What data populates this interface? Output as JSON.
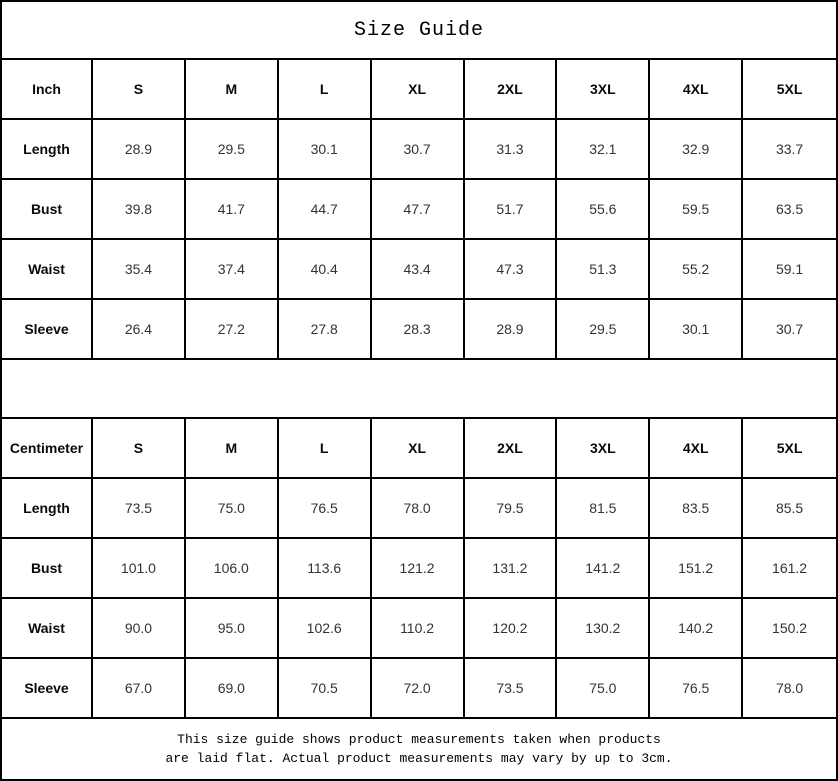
{
  "title": "Size Guide",
  "tables": [
    {
      "unit_label": "Inch",
      "sizes": [
        "S",
        "M",
        "L",
        "XL",
        "2XL",
        "3XL",
        "4XL",
        "5XL"
      ],
      "rows": [
        {
          "label": "Length",
          "values": [
            "28.9",
            "29.5",
            "30.1",
            "30.7",
            "31.3",
            "32.1",
            "32.9",
            "33.7"
          ]
        },
        {
          "label": "Bust",
          "values": [
            "39.8",
            "41.7",
            "44.7",
            "47.7",
            "51.7",
            "55.6",
            "59.5",
            "63.5"
          ]
        },
        {
          "label": "Waist",
          "values": [
            "35.4",
            "37.4",
            "40.4",
            "43.4",
            "47.3",
            "51.3",
            "55.2",
            "59.1"
          ]
        },
        {
          "label": "Sleeve",
          "values": [
            "26.4",
            "27.2",
            "27.8",
            "28.3",
            "28.9",
            "29.5",
            "30.1",
            "30.7"
          ]
        }
      ]
    },
    {
      "unit_label": "Centimeter",
      "sizes": [
        "S",
        "M",
        "L",
        "XL",
        "2XL",
        "3XL",
        "4XL",
        "5XL"
      ],
      "rows": [
        {
          "label": "Length",
          "values": [
            "73.5",
            "75.0",
            "76.5",
            "78.0",
            "79.5",
            "81.5",
            "83.5",
            "85.5"
          ]
        },
        {
          "label": "Bust",
          "values": [
            "101.0",
            "106.0",
            "113.6",
            "121.2",
            "131.2",
            "141.2",
            "151.2",
            "161.2"
          ]
        },
        {
          "label": "Waist",
          "values": [
            "90.0",
            "95.0",
            "102.6",
            "110.2",
            "120.2",
            "130.2",
            "140.2",
            "150.2"
          ]
        },
        {
          "label": "Sleeve",
          "values": [
            "67.0",
            "69.0",
            "70.5",
            "72.0",
            "73.5",
            "75.0",
            "76.5",
            "78.0"
          ]
        }
      ]
    }
  ],
  "footnote": {
    "line1": "This size guide shows product measurements taken when products",
    "line2": "are laid flat. Actual product measurements may vary by up to 3cm."
  }
}
